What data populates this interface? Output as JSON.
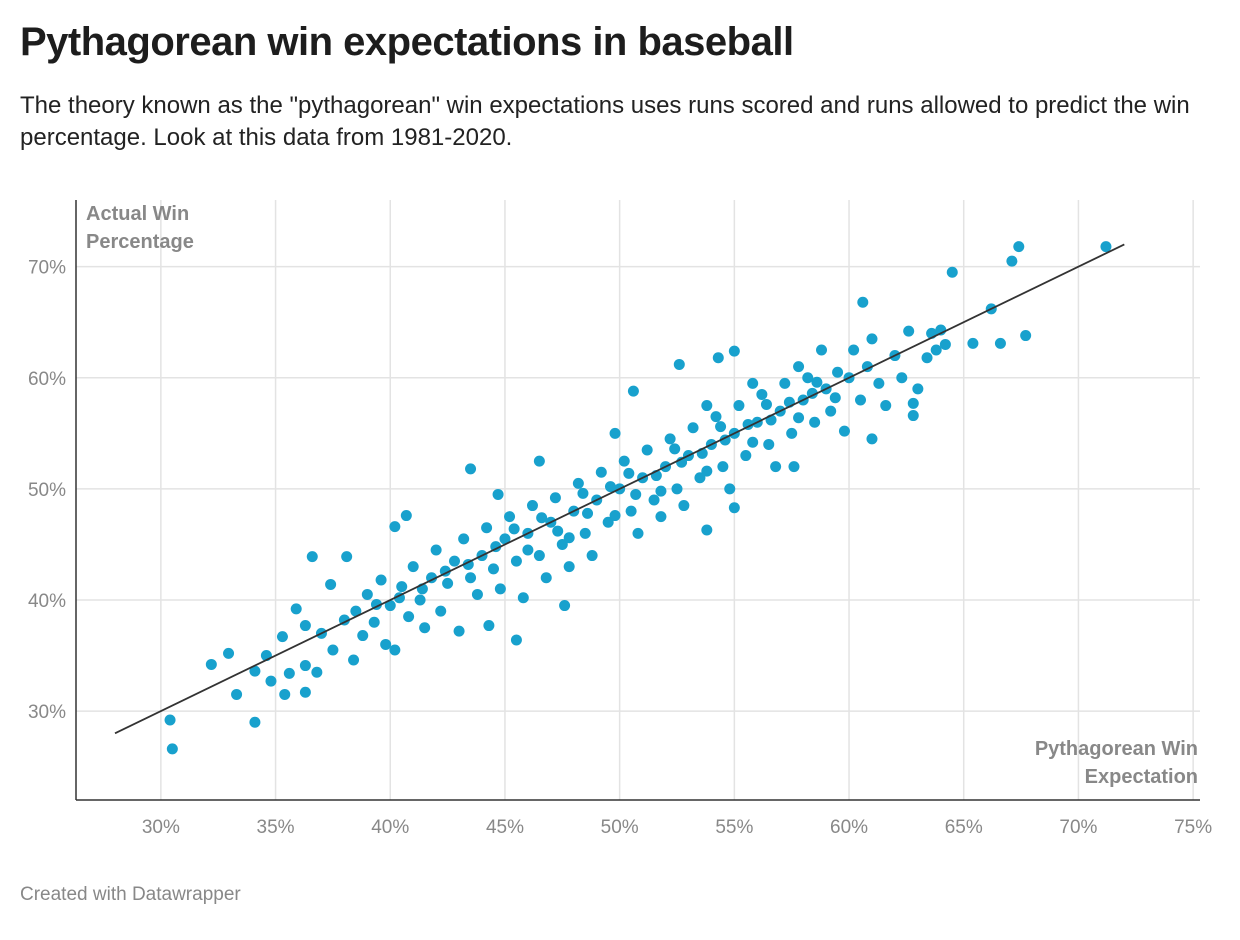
{
  "title": "Pythagorean win expectations in baseball",
  "subtitle": "The theory known as the \"pythagorean\" win expectations uses runs scored and runs allowed to predict the win percentage. Look at this data from 1981-2020.",
  "credit": "Created with Datawrapper",
  "chart_data": {
    "type": "scatter",
    "xlabel": "Pythagorean Win Expectation",
    "ylabel_lines": [
      "Actual Win",
      "Percentage"
    ],
    "xlabel_lines": [
      "Pythagorean Win",
      "Expectation"
    ],
    "xlim": [
      26.3,
      75.3
    ],
    "ylim": [
      22,
      76
    ],
    "x_ticks": [
      30,
      35,
      40,
      45,
      50,
      55,
      60,
      65,
      70,
      75
    ],
    "x_tick_labels": [
      "30%",
      "35%",
      "40%",
      "45%",
      "50%",
      "55%",
      "60%",
      "65%",
      "70%",
      "75%"
    ],
    "y_ticks": [
      30,
      40,
      50,
      60,
      70
    ],
    "y_tick_labels": [
      "30%",
      "40%",
      "50%",
      "60%",
      "70%"
    ],
    "grid": true,
    "point_color": "#18a1cd",
    "trend_line": {
      "from": [
        28,
        28
      ],
      "to": [
        72,
        72
      ],
      "color": "#333333"
    },
    "points": [
      [
        30.4,
        29.2
      ],
      [
        30.5,
        26.6
      ],
      [
        32.2,
        34.2
      ],
      [
        32.95,
        35.2
      ],
      [
        33.3,
        31.5
      ],
      [
        34.1,
        29.0
      ],
      [
        34.1,
        33.6
      ],
      [
        34.6,
        35.0
      ],
      [
        34.8,
        32.7
      ],
      [
        35.4,
        31.5
      ],
      [
        35.3,
        36.7
      ],
      [
        35.6,
        33.4
      ],
      [
        35.9,
        39.2
      ],
      [
        36.3,
        37.7
      ],
      [
        36.3,
        34.1
      ],
      [
        36.3,
        31.7
      ],
      [
        36.6,
        43.9
      ],
      [
        36.8,
        33.5
      ],
      [
        37.4,
        41.4
      ],
      [
        38.1,
        43.9
      ],
      [
        38.4,
        34.6
      ],
      [
        40.2,
        46.6
      ],
      [
        40.7,
        47.6
      ],
      [
        43.5,
        51.8
      ],
      [
        44.7,
        49.5
      ],
      [
        44.3,
        37.7
      ],
      [
        45.5,
        36.4
      ],
      [
        46.5,
        52.5
      ],
      [
        47.6,
        39.5
      ],
      [
        50.6,
        58.8
      ],
      [
        52.6,
        61.2
      ],
      [
        54.3,
        61.8
      ],
      [
        53.8,
        46.3
      ],
      [
        55.0,
        62.4
      ],
      [
        55.0,
        48.3
      ],
      [
        57.6,
        52.0
      ],
      [
        60.6,
        66.8
      ],
      [
        61.0,
        54.5
      ],
      [
        62.8,
        56.6
      ],
      [
        63.6,
        64.0
      ],
      [
        64.5,
        69.5
      ],
      [
        65.4,
        63.1
      ],
      [
        66.2,
        66.2
      ],
      [
        66.6,
        63.1
      ],
      [
        67.1,
        70.5
      ],
      [
        67.4,
        71.8
      ],
      [
        67.7,
        63.8
      ],
      [
        71.2,
        71.8
      ],
      [
        62.8,
        57.7
      ],
      [
        37.0,
        37.0
      ],
      [
        37.5,
        35.5
      ],
      [
        38.0,
        38.2
      ],
      [
        38.5,
        39.0
      ],
      [
        38.8,
        36.8
      ],
      [
        39.0,
        40.5
      ],
      [
        39.3,
        38.0
      ],
      [
        39.6,
        41.8
      ],
      [
        39.8,
        36.0
      ],
      [
        40.0,
        39.5
      ],
      [
        40.2,
        35.5
      ],
      [
        40.5,
        41.2
      ],
      [
        40.8,
        38.5
      ],
      [
        41.0,
        43.0
      ],
      [
        41.3,
        40.0
      ],
      [
        41.5,
        37.5
      ],
      [
        41.8,
        42.0
      ],
      [
        42.0,
        44.5
      ],
      [
        42.2,
        39.0
      ],
      [
        42.5,
        41.5
      ],
      [
        42.8,
        43.5
      ],
      [
        43.0,
        37.2
      ],
      [
        43.2,
        45.5
      ],
      [
        43.5,
        42.0
      ],
      [
        43.8,
        40.5
      ],
      [
        44.0,
        44.0
      ],
      [
        44.2,
        46.5
      ],
      [
        44.5,
        42.8
      ],
      [
        44.8,
        41.0
      ],
      [
        45.0,
        45.5
      ],
      [
        45.2,
        47.5
      ],
      [
        45.5,
        43.5
      ],
      [
        45.8,
        40.2
      ],
      [
        46.0,
        46.0
      ],
      [
        46.2,
        48.5
      ],
      [
        46.5,
        44.0
      ],
      [
        46.8,
        42.0
      ],
      [
        47.0,
        47.0
      ],
      [
        47.2,
        49.2
      ],
      [
        47.5,
        45.0
      ],
      [
        47.8,
        43.0
      ],
      [
        48.0,
        48.0
      ],
      [
        48.2,
        50.5
      ],
      [
        48.5,
        46.0
      ],
      [
        48.8,
        44.0
      ],
      [
        49.0,
        49.0
      ],
      [
        49.2,
        51.5
      ],
      [
        49.5,
        47.0
      ],
      [
        49.8,
        55.0
      ],
      [
        50.0,
        50.0
      ],
      [
        50.2,
        52.5
      ],
      [
        50.5,
        48.0
      ],
      [
        50.8,
        46.0
      ],
      [
        51.0,
        51.0
      ],
      [
        51.2,
        53.5
      ],
      [
        51.5,
        49.0
      ],
      [
        51.8,
        47.5
      ],
      [
        52.0,
        52.0
      ],
      [
        52.2,
        54.5
      ],
      [
        52.5,
        50.0
      ],
      [
        52.8,
        48.5
      ],
      [
        53.0,
        53.0
      ],
      [
        53.2,
        55.5
      ],
      [
        53.5,
        51.0
      ],
      [
        53.8,
        57.5
      ],
      [
        54.0,
        54.0
      ],
      [
        54.2,
        56.5
      ],
      [
        54.5,
        52.0
      ],
      [
        54.8,
        50.0
      ],
      [
        55.0,
        55.0
      ],
      [
        55.2,
        57.5
      ],
      [
        55.5,
        53.0
      ],
      [
        55.8,
        59.5
      ],
      [
        56.0,
        56.0
      ],
      [
        56.2,
        58.5
      ],
      [
        56.5,
        54.0
      ],
      [
        56.8,
        52.0
      ],
      [
        57.0,
        57.0
      ],
      [
        57.2,
        59.5
      ],
      [
        57.5,
        55.0
      ],
      [
        57.8,
        61.0
      ],
      [
        58.0,
        58.0
      ],
      [
        58.2,
        60.0
      ],
      [
        58.5,
        56.0
      ],
      [
        58.8,
        62.5
      ],
      [
        59.0,
        59.0
      ],
      [
        59.2,
        57.0
      ],
      [
        59.5,
        60.5
      ],
      [
        59.8,
        55.2
      ],
      [
        60.0,
        60.0
      ],
      [
        60.2,
        62.5
      ],
      [
        60.5,
        58.0
      ],
      [
        60.8,
        61.0
      ],
      [
        61.0,
        63.5
      ],
      [
        61.3,
        59.5
      ],
      [
        61.6,
        57.5
      ],
      [
        62.0,
        62.0
      ],
      [
        62.3,
        60.0
      ],
      [
        62.6,
        64.2
      ],
      [
        63.0,
        59.0
      ],
      [
        63.4,
        61.8
      ],
      [
        63.8,
        62.5
      ],
      [
        64.2,
        63.0
      ],
      [
        64.0,
        64.3
      ],
      [
        46.0,
        44.5
      ],
      [
        47.3,
        46.2
      ],
      [
        48.6,
        47.8
      ],
      [
        49.6,
        50.2
      ],
      [
        50.7,
        49.5
      ],
      [
        51.6,
        51.2
      ],
      [
        52.7,
        52.4
      ],
      [
        53.6,
        53.2
      ],
      [
        54.6,
        54.4
      ],
      [
        55.6,
        55.8
      ],
      [
        56.6,
        56.2
      ],
      [
        57.4,
        57.8
      ],
      [
        58.4,
        58.6
      ],
      [
        59.4,
        58.2
      ],
      [
        44.6,
        44.8
      ],
      [
        43.4,
        43.2
      ],
      [
        42.4,
        42.6
      ],
      [
        41.4,
        41.0
      ],
      [
        40.4,
        40.2
      ],
      [
        39.4,
        39.6
      ],
      [
        45.4,
        46.4
      ],
      [
        46.6,
        47.4
      ],
      [
        48.4,
        49.6
      ],
      [
        50.4,
        51.4
      ],
      [
        52.4,
        53.6
      ],
      [
        54.4,
        55.6
      ],
      [
        56.4,
        57.6
      ],
      [
        58.6,
        59.6
      ],
      [
        47.8,
        45.6
      ],
      [
        49.8,
        47.6
      ],
      [
        51.8,
        49.8
      ],
      [
        53.8,
        51.6
      ],
      [
        55.8,
        54.2
      ],
      [
        57.8,
        56.4
      ]
    ]
  }
}
